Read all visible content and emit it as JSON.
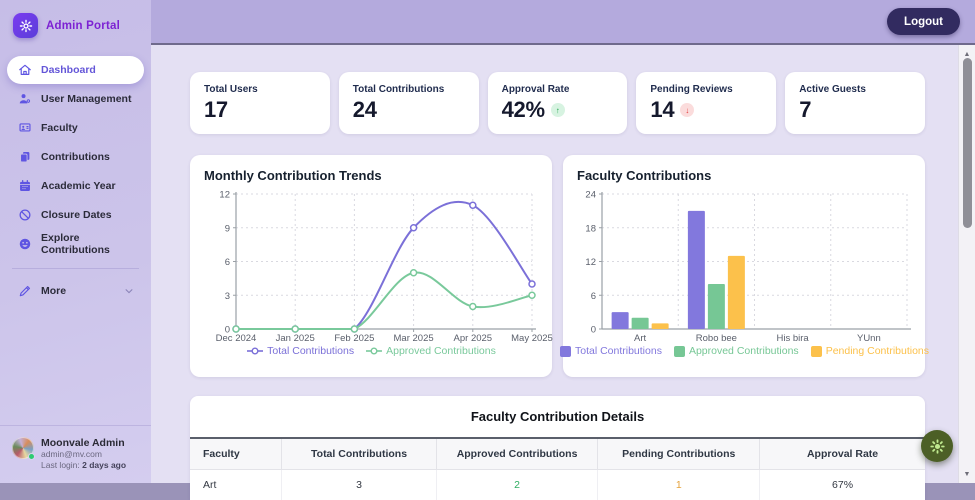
{
  "brand": {
    "name": "Admin Portal",
    "logo_icon": "gear-icon"
  },
  "topbar": {
    "logout_label": "Logout"
  },
  "sidebar": {
    "items": [
      {
        "label": "Dashboard",
        "icon": "home-icon",
        "active": true
      },
      {
        "label": "User Management",
        "icon": "user-gear-icon",
        "active": false
      },
      {
        "label": "Faculty",
        "icon": "faculty-icon",
        "active": false
      },
      {
        "label": "Contributions",
        "icon": "documents-icon",
        "active": false
      },
      {
        "label": "Academic Year",
        "icon": "calendar-icon",
        "active": false
      },
      {
        "label": "Closure Dates",
        "icon": "ban-icon",
        "active": false
      },
      {
        "label": "Explore Contributions",
        "icon": "smiley-icon",
        "active": false
      }
    ],
    "more": {
      "label": "More",
      "icon": "pencil-icon",
      "chevron": "chevron-down-icon"
    }
  },
  "user": {
    "name": "Moonvale Admin",
    "email": "admin@mv.com",
    "last_login_label": "Last login:",
    "last_login_value": "2 days ago"
  },
  "stats": [
    {
      "label": "Total Users",
      "value": "17",
      "badge": "none"
    },
    {
      "label": "Total Contributions",
      "value": "24",
      "badge": "none"
    },
    {
      "label": "Approval Rate",
      "value": "42%",
      "badge": "up"
    },
    {
      "label": "Pending Reviews",
      "value": "14",
      "badge": "down"
    },
    {
      "label": "Active Guests",
      "value": "7",
      "badge": "none"
    }
  ],
  "chart_data": [
    {
      "type": "line",
      "title": "Monthly Contribution Trends",
      "x": [
        "Dec 2024",
        "Jan 2025",
        "Feb 2025",
        "Mar 2025",
        "Apr 2025",
        "May 2025"
      ],
      "series": [
        {
          "name": "Total Contributions",
          "color": "#7b70d8",
          "values": [
            0,
            0,
            0,
            9,
            11,
            4
          ]
        },
        {
          "name": "Approved Contributions",
          "color": "#79c99b",
          "values": [
            0,
            0,
            0,
            5,
            2,
            3
          ]
        }
      ],
      "yticks": [
        0,
        3,
        6,
        9,
        12
      ],
      "ylim": [
        0,
        12
      ],
      "grid": true,
      "legend_position": "bottom"
    },
    {
      "type": "bar",
      "title": "Faculty Contributions",
      "categories": [
        "Art",
        "Robo bee",
        "His bira",
        "YUnn"
      ],
      "series": [
        {
          "name": "Total Contributions",
          "color": "#8278dd",
          "values": [
            3,
            21,
            0,
            0
          ]
        },
        {
          "name": "Approved Contributions",
          "color": "#76c795",
          "values": [
            2,
            8,
            0,
            0
          ]
        },
        {
          "name": "Pending Contributions",
          "color": "#fcc14b",
          "values": [
            1,
            13,
            0,
            0
          ]
        }
      ],
      "yticks": [
        0,
        6,
        12,
        18,
        24
      ],
      "ylim": [
        0,
        24
      ],
      "grid": true,
      "legend_position": "bottom"
    }
  ],
  "table": {
    "title": "Faculty Contribution Details",
    "headers": [
      "Faculty",
      "Total Contributions",
      "Approved Contributions",
      "Pending Contributions",
      "Approval Rate"
    ],
    "rows": [
      [
        "Art",
        "3",
        "2",
        "1",
        "67%"
      ]
    ]
  },
  "colors": {
    "accent_purple": "#6456d8",
    "brand_purple": "#7d22d3",
    "badge_up_green": "#1fa24a",
    "badge_down_red": "#e23c3c",
    "approved_green": "#2fae62",
    "pending_orange": "#e5a23c",
    "fab_green": "#4c5f26"
  }
}
